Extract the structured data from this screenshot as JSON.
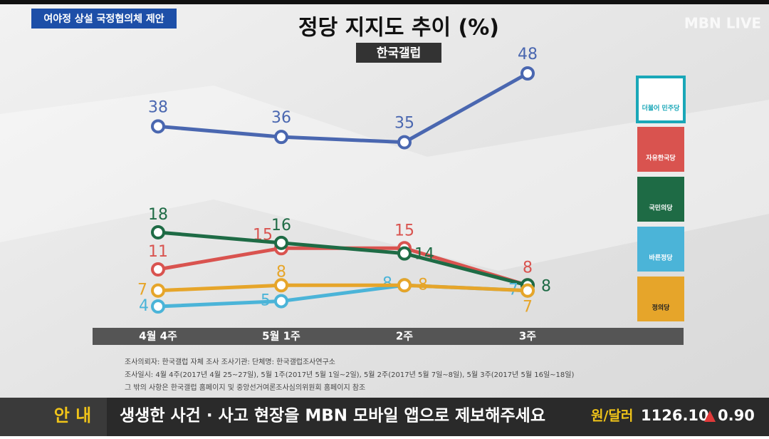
{
  "chart_data": {
    "type": "line",
    "title": "정당 지지도 추이 (%)",
    "subtitle": "한국갤럽",
    "categories": [
      "4월 4주",
      "5월 1주",
      "2주",
      "3주"
    ],
    "series": [
      {
        "name": "더불어 민주당",
        "color": "#4a67b0",
        "values": [
          38,
          36,
          35,
          48
        ]
      },
      {
        "name": "자유한국당",
        "color": "#d9534f",
        "values": [
          11,
          15,
          15,
          8
        ]
      },
      {
        "name": "국민의당",
        "color": "#1e6b45",
        "values": [
          18,
          16,
          14,
          8
        ]
      },
      {
        "name": "바른정당",
        "color": "#4bb4d8",
        "values": [
          4,
          5,
          8,
          7
        ]
      },
      {
        "name": "정의당",
        "color": "#e6a52a",
        "values": [
          7,
          8,
          8,
          7
        ]
      }
    ]
  },
  "banner": "여야정 상설 국정협의체 제안",
  "logo": "MBN LIVE",
  "notes": [
    "조사의뢰자: 한국갤럽 자체 조사    조사기관: 단체명: 한국갤럽조사연구소",
    "조사일시: 4월 4주(2017년 4월 25~27일), 5월 1주(2017년 5월 1일~2일), 5월 2주(2017년 5월 7일~8일), 5월 3주(2017년 5월 16일~18일)",
    "그 밖의 사항은 한국갤럽 홈페이지 및 중앙선거여론조사심의위원회 홈페이지 참조"
  ],
  "ticker": {
    "tag": "안 내",
    "message": "생생한 사건 · 사고 현장을 MBN 모바일 앱으로 제보해주세요",
    "rate_label": "원/달러",
    "rate": "1126.10",
    "change": "0.90"
  }
}
